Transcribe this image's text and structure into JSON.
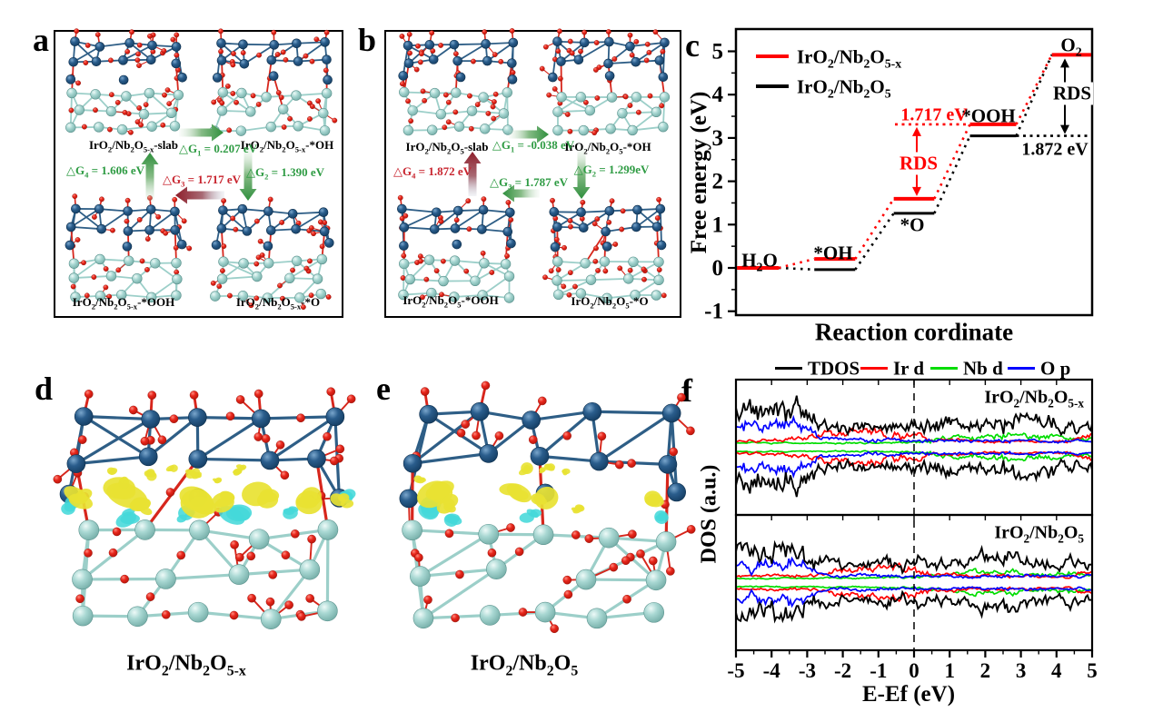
{
  "figure": {
    "background": "#ffffff",
    "panel_letters": [
      "a",
      "b",
      "c",
      "d",
      "e",
      "f"
    ]
  },
  "colors": {
    "ir_atom": "#1d4e7a",
    "nb_atom": "#9fcfcb",
    "o_atom": "#e3241a",
    "bond_red": "#d7261c",
    "bond_ir": "#2e5e86",
    "bond_nb": "#9ccfc9",
    "charge_accumulation_yellow": "#e8e232",
    "charge_depletion_cyan": "#44d8da",
    "green_text": "#2e9b43",
    "red_text": "#c8242e"
  },
  "panel_a": {
    "structures": [
      "IrO~2~/Nb~2~O~5-x~-slab",
      "IrO~2~/Nb~2~O~5-x~-*OH",
      "IrO~2~/Nb~2~O~5-x~-*OOH",
      "IrO~2~/Nb~2~O~5-x~-*O"
    ],
    "arrows": [
      {
        "label": "△G~1~ = 0.207 eV",
        "color": "#2e9b43",
        "direction": "right"
      },
      {
        "label": "△G~2~ = 1.390 eV",
        "color": "#2e9b43",
        "direction": "down"
      },
      {
        "label": "△G~3~ = 1.717 eV",
        "color": "#c8242e",
        "direction": "left"
      },
      {
        "label": "△G~4~ = 1.606 eV",
        "color": "#2e9b43",
        "direction": "up"
      }
    ]
  },
  "panel_b": {
    "structures": [
      "IrO~2~/Nb~2~O~5~-slab",
      "IrO~2~/Nb~2~O~5~-*OH",
      "IrO~2~/Nb~2~O~5~-*OOH",
      "IrO~2~/Nb~2~O~5~-*O"
    ],
    "arrows": [
      {
        "label": "△G~1~ = -0.038 eV",
        "color": "#2e9b43",
        "direction": "right"
      },
      {
        "label": "△G~2~ = 1.299eV",
        "color": "#2e9b43",
        "direction": "down"
      },
      {
        "label": "△G~3~ = 1.787 eV",
        "color": "#2e9b43",
        "direction": "left"
      },
      {
        "label": "△G~4~ = 1.872 eV",
        "color": "#c8242e",
        "direction": "up"
      }
    ]
  },
  "panel_d": {
    "caption": "IrO~2~/Nb~2~O~5-x~"
  },
  "panel_e": {
    "caption": "IrO~2~/Nb~2~O~5~"
  },
  "chart_data": [
    {
      "panel": "c",
      "type": "line",
      "subtype": "reaction-free-energy-steps",
      "xlabel": "Reaction cordinate",
      "ylabel": "Free energy (eV)",
      "ylim": [
        -1,
        5.5
      ],
      "yticks": [
        -1,
        0,
        1,
        2,
        3,
        4,
        5
      ],
      "grid": false,
      "legend_position": "top-left",
      "categories": [
        "H~2~O",
        "*OH",
        "*O",
        "*OOH",
        "O~2~"
      ],
      "series": [
        {
          "name": "IrO~2~/Nb~2~O~5-x~",
          "color": "#ff0000",
          "values": [
            0,
            0.207,
            1.597,
            3.314,
            4.92
          ]
        },
        {
          "name": "IrO~2~/Nb~2~O~5~",
          "color": "#000000",
          "values": [
            0,
            -0.038,
            1.261,
            3.048,
            4.92
          ]
        }
      ],
      "annotations": {
        "rds_red": {
          "text": "RDS",
          "color": "#ff0000",
          "value_ev": "1.717 eV",
          "between": [
            "*O",
            "*OOH"
          ]
        },
        "rds_black": {
          "text": "RDS",
          "color": "#000000",
          "value_ev": "1.872 eV",
          "between": [
            "*OOH",
            "O~2~"
          ]
        }
      }
    },
    {
      "panel": "f",
      "type": "line",
      "subtype": "density-of-states",
      "xlabel": "E-Ef (eV)",
      "ylabel": "DOS (a.u.)",
      "xlim": [
        -5,
        5
      ],
      "xticks": [
        -5,
        -4,
        -3,
        -2,
        -1,
        0,
        1,
        2,
        3,
        4,
        5
      ],
      "fermi_dashed_line_x": 0,
      "spin_resolved": true,
      "subpanels": [
        {
          "label": "IrO~2~/Nb~2~O~5-x~"
        },
        {
          "label": "IrO~2~/Nb~2~O~5~"
        }
      ],
      "series": [
        {
          "name": "TDOS",
          "color": "#000000",
          "amp_profile": [
            [
              [
                -5,
                0.82
              ],
              [
                -4,
                0.88
              ],
              [
                -3.1,
                0.92
              ],
              [
                -2.7,
                0.52
              ],
              [
                -2,
                0.45
              ],
              [
                -1,
                0.5
              ],
              [
                0,
                0.48
              ],
              [
                0.8,
                0.55
              ],
              [
                2,
                0.56
              ],
              [
                3,
                0.62
              ],
              [
                4,
                0.55
              ],
              [
                5,
                0.45
              ]
            ],
            [
              [
                -5,
                0.68
              ],
              [
                -4,
                0.72
              ],
              [
                -3.4,
                0.78
              ],
              [
                -2.8,
                0.5
              ],
              [
                -2,
                0.45
              ],
              [
                -1,
                0.48
              ],
              [
                0,
                0.52
              ],
              [
                1,
                0.45
              ],
              [
                2,
                0.5
              ],
              [
                3,
                0.55
              ],
              [
                4,
                0.5
              ],
              [
                5,
                0.42
              ]
            ]
          ]
        },
        {
          "name": "Ir d",
          "color": "#ff0000",
          "amp_profile": [
            [
              [
                -5,
                0.1
              ],
              [
                -3.5,
                0.12
              ],
              [
                -2.5,
                0.28
              ],
              [
                -1.5,
                0.34
              ],
              [
                -0.5,
                0.3
              ],
              [
                0,
                0.28
              ],
              [
                0.5,
                0.16
              ],
              [
                1.5,
                0.1
              ],
              [
                3,
                0.08
              ],
              [
                4.4,
                0.1
              ],
              [
                5,
                0.3
              ]
            ],
            [
              [
                -5,
                0.1
              ],
              [
                -3,
                0.12
              ],
              [
                -2,
                0.25
              ],
              [
                -1,
                0.3
              ],
              [
                0,
                0.28
              ],
              [
                0.6,
                0.16
              ],
              [
                1.5,
                0.14
              ],
              [
                3,
                0.1
              ],
              [
                4.4,
                0.1
              ],
              [
                5,
                0.26
              ]
            ]
          ]
        },
        {
          "name": "Nb d",
          "color": "#00dd00",
          "amp_profile": [
            [
              [
                -5,
                0.05
              ],
              [
                -3,
                0.05
              ],
              [
                -1,
                0.06
              ],
              [
                0,
                0.07
              ],
              [
                0.7,
                0.16
              ],
              [
                1.5,
                0.22
              ],
              [
                2.6,
                0.26
              ],
              [
                3.5,
                0.22
              ],
              [
                4.5,
                0.2
              ],
              [
                5,
                0.16
              ]
            ],
            [
              [
                -5,
                0.05
              ],
              [
                -3,
                0.05
              ],
              [
                -1,
                0.06
              ],
              [
                0,
                0.08
              ],
              [
                1,
                0.18
              ],
              [
                2,
                0.2
              ],
              [
                3,
                0.2
              ],
              [
                4,
                0.16
              ],
              [
                5,
                0.15
              ]
            ]
          ]
        },
        {
          "name": "O p",
          "color": "#0000ff",
          "amp_profile": [
            [
              [
                -5,
                0.46
              ],
              [
                -4,
                0.5
              ],
              [
                -3.2,
                0.52
              ],
              [
                -2.6,
                0.18
              ],
              [
                -2,
                0.14
              ],
              [
                -1,
                0.13
              ],
              [
                0,
                0.12
              ],
              [
                1,
                0.1
              ],
              [
                2,
                0.11
              ],
              [
                3,
                0.12
              ],
              [
                4,
                0.1
              ],
              [
                5,
                0.1
              ]
            ],
            [
              [
                -5,
                0.38
              ],
              [
                -4,
                0.42
              ],
              [
                -3.3,
                0.45
              ],
              [
                -2.6,
                0.16
              ],
              [
                -2,
                0.13
              ],
              [
                -1,
                0.12
              ],
              [
                0,
                0.12
              ],
              [
                1,
                0.1
              ],
              [
                2,
                0.1
              ],
              [
                3,
                0.1
              ],
              [
                4,
                0.11
              ],
              [
                5,
                0.12
              ]
            ]
          ]
        }
      ]
    }
  ]
}
